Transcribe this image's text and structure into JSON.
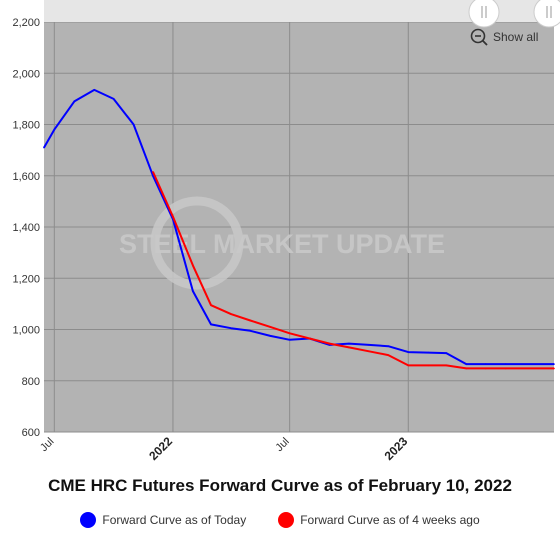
{
  "chart_data": {
    "type": "line",
    "title": "CME HRC Futures Forward Curve as of February 10, 2022",
    "watermark": "STEEL MARKET UPDATE",
    "ylim": [
      600,
      2200
    ],
    "yticks": [
      600,
      800,
      1000,
      1200,
      1400,
      1600,
      1800,
      2000,
      2200
    ],
    "ytick_labels": [
      "600",
      "800",
      "1,000",
      "1,200",
      "1,400",
      "1,600",
      "1,800",
      "2,000",
      "2,200"
    ],
    "xlim": [
      "2021-06-15",
      "2023-08-15"
    ],
    "xticks": [
      {
        "date": "2021-07-01",
        "label": "Jul",
        "major": false
      },
      {
        "date": "2022-01-01",
        "label": "2022",
        "major": true
      },
      {
        "date": "2022-07-01",
        "label": "Jul",
        "major": false
      },
      {
        "date": "2023-01-01",
        "label": "2023",
        "major": true
      }
    ],
    "grid": true,
    "legend_position": "bottom",
    "colors": {
      "today": "#0000ff",
      "weeks_ago": "#ff0000",
      "plot_bg": "#b3b3b3",
      "grid": "#8c8c8c"
    },
    "series": [
      {
        "name": "Forward Curve as of Today",
        "color": "#0000ff",
        "points": [
          {
            "x": "2021-06-15",
            "y": 1710
          },
          {
            "x": "2021-07-01",
            "y": 1780
          },
          {
            "x": "2021-08-01",
            "y": 1890
          },
          {
            "x": "2021-09-01",
            "y": 1935
          },
          {
            "x": "2021-10-01",
            "y": 1900
          },
          {
            "x": "2021-11-01",
            "y": 1800
          },
          {
            "x": "2021-12-01",
            "y": 1600
          },
          {
            "x": "2022-01-01",
            "y": 1430
          },
          {
            "x": "2022-02-01",
            "y": 1150
          },
          {
            "x": "2022-03-01",
            "y": 1020
          },
          {
            "x": "2022-04-01",
            "y": 1005
          },
          {
            "x": "2022-05-01",
            "y": 995
          },
          {
            "x": "2022-06-01",
            "y": 975
          },
          {
            "x": "2022-07-01",
            "y": 960
          },
          {
            "x": "2022-08-01",
            "y": 965
          },
          {
            "x": "2022-09-01",
            "y": 940
          },
          {
            "x": "2022-10-01",
            "y": 945
          },
          {
            "x": "2022-11-01",
            "y": 940
          },
          {
            "x": "2022-12-01",
            "y": 935
          },
          {
            "x": "2023-01-01",
            "y": 912
          },
          {
            "x": "2023-02-01",
            "y": 910
          },
          {
            "x": "2023-03-01",
            "y": 908
          },
          {
            "x": "2023-04-01",
            "y": 865
          },
          {
            "x": "2023-05-01",
            "y": 865
          },
          {
            "x": "2023-06-01",
            "y": 865
          },
          {
            "x": "2023-08-15",
            "y": 865
          }
        ]
      },
      {
        "name": "Forward Curve as of 4 weeks ago",
        "color": "#ff0000",
        "points": [
          {
            "x": "2021-12-01",
            "y": 1615
          },
          {
            "x": "2022-01-01",
            "y": 1440
          },
          {
            "x": "2022-02-01",
            "y": 1250
          },
          {
            "x": "2022-03-01",
            "y": 1095
          },
          {
            "x": "2022-04-01",
            "y": 1060
          },
          {
            "x": "2022-05-01",
            "y": 1035
          },
          {
            "x": "2022-06-01",
            "y": 1010
          },
          {
            "x": "2022-07-01",
            "y": 985
          },
          {
            "x": "2022-08-01",
            "y": 965
          },
          {
            "x": "2022-09-01",
            "y": 945
          },
          {
            "x": "2022-10-01",
            "y": 930
          },
          {
            "x": "2022-11-01",
            "y": 915
          },
          {
            "x": "2022-12-01",
            "y": 900
          },
          {
            "x": "2023-01-01",
            "y": 860
          },
          {
            "x": "2023-02-01",
            "y": 860
          },
          {
            "x": "2023-03-01",
            "y": 860
          },
          {
            "x": "2023-04-01",
            "y": 848
          },
          {
            "x": "2023-05-01",
            "y": 848
          },
          {
            "x": "2023-06-01",
            "y": 848
          },
          {
            "x": "2023-08-15",
            "y": 848
          }
        ]
      }
    ]
  },
  "controls": {
    "show_all_label": "Show all"
  }
}
